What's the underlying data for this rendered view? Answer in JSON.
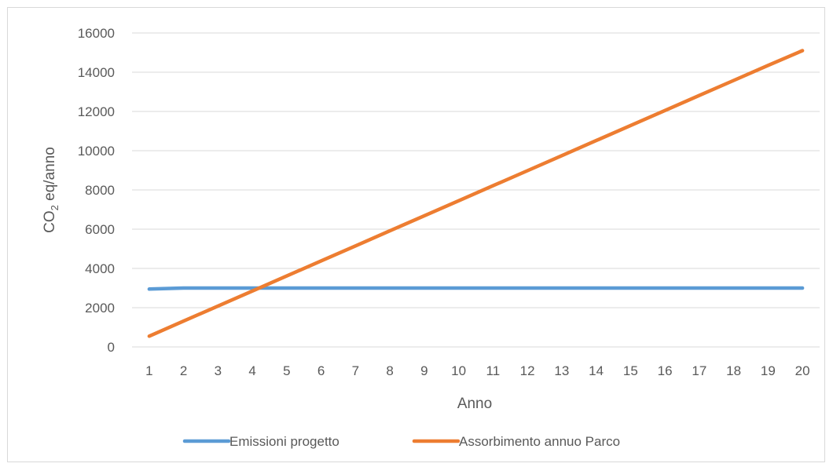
{
  "chart_data": {
    "type": "line",
    "title": "",
    "xlabel": "Anno",
    "ylabel_main": "CO",
    "ylabel_sub": "2",
    "ylabel_rest": " eq/anno",
    "ylim": [
      0,
      16000
    ],
    "ytick_step": 2000,
    "ytick_labels": [
      "0",
      "2000",
      "4000",
      "6000",
      "8000",
      "10000",
      "12000",
      "14000",
      "16000"
    ],
    "categories": [
      "1",
      "2",
      "3",
      "4",
      "5",
      "6",
      "7",
      "8",
      "9",
      "10",
      "11",
      "12",
      "13",
      "14",
      "15",
      "16",
      "17",
      "18",
      "19",
      "20"
    ],
    "grid": true,
    "legend_position": "bottom",
    "series": [
      {
        "name": "Emissioni progetto",
        "color": "#5b9bd5",
        "values": [
          2950,
          3000,
          3000,
          3000,
          3000,
          3000,
          3000,
          3000,
          3000,
          3000,
          3000,
          3000,
          3000,
          3000,
          3000,
          3000,
          3000,
          3000,
          3000,
          3000
        ]
      },
      {
        "name": "Assorbimento annuo Parco",
        "color": "#ed7d31",
        "values": [
          550,
          1317,
          2083,
          2850,
          3616,
          4383,
          5149,
          5916,
          6682,
          7449,
          8216,
          8982,
          9749,
          10515,
          11282,
          12048,
          12815,
          13581,
          14348,
          15100
        ]
      }
    ]
  }
}
